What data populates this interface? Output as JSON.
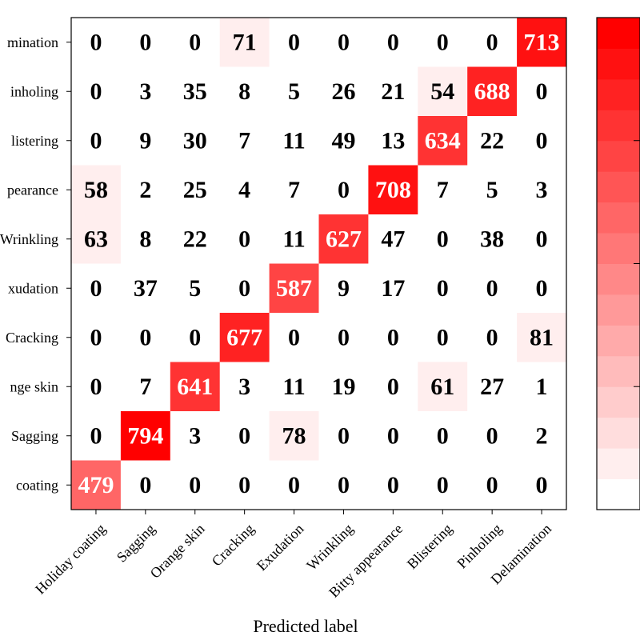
{
  "chart_data": {
    "type": "heatmap",
    "title": "",
    "xlabel": "Predicted label",
    "ylabel": "",
    "x_categories": [
      "Holiday coating",
      "Sagging",
      "Orange skin",
      "Cracking",
      "Exudation",
      "Wrinkling",
      "Bitty appearance",
      "Blistering",
      "Pinholing",
      "Delamination"
    ],
    "y_categories": [
      "Delamination",
      "Pinholing",
      "Blistering",
      "Bitty appearance",
      "Wrinkling",
      "Exudation",
      "Cracking",
      "Orange skin",
      "Sagging",
      "Holiday coating"
    ],
    "y_tick_labels_visible": [
      "mination",
      "inholing",
      "listering",
      "pearance",
      "Wrinkling",
      "xudation",
      "Cracking",
      "nge skin",
      "Sagging",
      "coating"
    ],
    "values": [
      [
        0,
        0,
        0,
        71,
        0,
        0,
        0,
        0,
        0,
        713
      ],
      [
        0,
        3,
        35,
        8,
        5,
        26,
        21,
        54,
        688,
        0
      ],
      [
        0,
        9,
        30,
        7,
        11,
        49,
        13,
        634,
        22,
        0
      ],
      [
        58,
        2,
        25,
        4,
        7,
        0,
        708,
        7,
        5,
        3
      ],
      [
        63,
        8,
        22,
        0,
        11,
        627,
        47,
        0,
        38,
        0
      ],
      [
        0,
        37,
        5,
        0,
        587,
        9,
        17,
        0,
        0,
        0
      ],
      [
        0,
        0,
        0,
        677,
        0,
        0,
        0,
        0,
        0,
        81
      ],
      [
        0,
        7,
        641,
        3,
        11,
        19,
        0,
        61,
        27,
        1
      ],
      [
        0,
        794,
        3,
        0,
        78,
        0,
        0,
        0,
        0,
        2
      ],
      [
        479,
        0,
        0,
        0,
        0,
        0,
        0,
        0,
        0,
        0
      ]
    ],
    "colormap": {
      "low": "#ffffff",
      "high": "#ff0000",
      "bands": 16,
      "vmax": 800
    },
    "colorbar": {
      "visible": true,
      "position": "right"
    }
  }
}
